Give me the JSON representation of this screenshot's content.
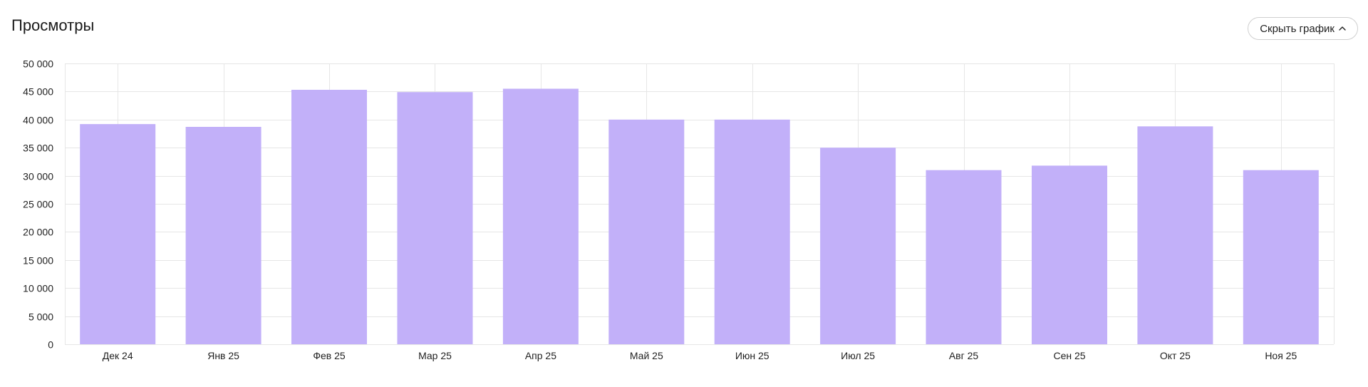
{
  "header": {
    "title": "Просмотры",
    "toggle_label": "Скрыть график",
    "toggle_icon": "chevron-up-icon"
  },
  "colors": {
    "bar": "#c2b0f9",
    "grid": "#e6e6e6",
    "axis_text": "#1f1f1f"
  },
  "chart_data": {
    "type": "bar",
    "title": "Просмотры",
    "xlabel": "",
    "ylabel": "",
    "categories": [
      "Дек 24",
      "Янв 25",
      "Фев 25",
      "Мар 25",
      "Апр 25",
      "Май 25",
      "Июн 25",
      "Июл 25",
      "Авг 25",
      "Сен 25",
      "Окт 25",
      "Ноя 25"
    ],
    "values": [
      39200,
      38700,
      45300,
      44900,
      45500,
      40000,
      40000,
      35000,
      31000,
      31800,
      38800,
      31000
    ],
    "ylim": [
      0,
      50000
    ],
    "yticks": [
      0,
      5000,
      10000,
      15000,
      20000,
      25000,
      30000,
      35000,
      40000,
      45000,
      50000
    ],
    "ytick_labels": [
      "0",
      "5 000",
      "10 000",
      "15 000",
      "20 000",
      "25 000",
      "30 000",
      "35 000",
      "40 000",
      "45 000",
      "50 000"
    ],
    "grid": true,
    "legend": "none"
  }
}
